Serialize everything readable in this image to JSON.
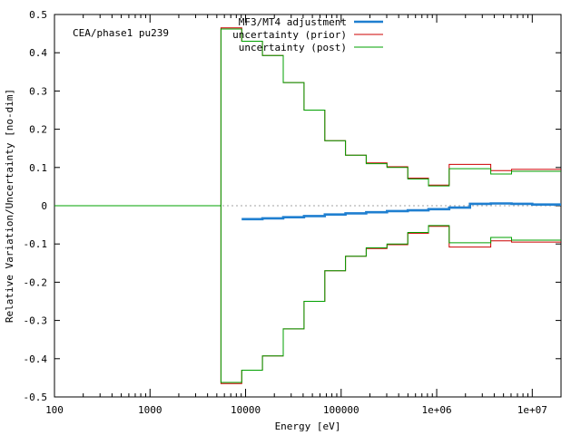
{
  "chart_data": {
    "type": "line",
    "annotation": "CEA/phase1 pu239",
    "xlabel": "Energy [eV]",
    "ylabel": "Relative Variation/Uncertainty [no-dim]",
    "xscale": "log",
    "xlim": [
      100,
      20000000
    ],
    "ylim": [
      -0.5,
      0.5
    ],
    "xticks": [
      {
        "value": 100,
        "label": "100"
      },
      {
        "value": 1000,
        "label": "1000"
      },
      {
        "value": 10000,
        "label": "10000"
      },
      {
        "value": 100000,
        "label": "100000"
      },
      {
        "value": 1000000,
        "label": "1e+06"
      },
      {
        "value": 10000000,
        "label": "1e+07"
      }
    ],
    "yticks": [
      {
        "value": 0.5,
        "label": "0.5"
      },
      {
        "value": 0.4,
        "label": "0.4"
      },
      {
        "value": 0.3,
        "label": "0.3"
      },
      {
        "value": 0.2,
        "label": "0.2"
      },
      {
        "value": 0.1,
        "label": "0.1"
      },
      {
        "value": 0,
        "label": "0"
      },
      {
        "value": -0.1,
        "label": "-0.1"
      },
      {
        "value": -0.2,
        "label": "-0.2"
      },
      {
        "value": -0.3,
        "label": "-0.3"
      },
      {
        "value": -0.4,
        "label": "-0.4"
      },
      {
        "value": -0.5,
        "label": "-0.5"
      }
    ],
    "legend_position": "top-right",
    "series": [
      {
        "name": "MF3/MT4 adjustment",
        "color": "#1f7fd0",
        "style": "thick",
        "x": [
          9100,
          15000,
          24800,
          40900,
          67400,
          111000,
          183000,
          302000,
          498000,
          821000,
          1350000,
          2230000,
          3680000,
          6070000,
          10000000,
          20000000
        ],
        "y": [
          -0.035,
          -0.033,
          -0.03,
          -0.027,
          -0.023,
          -0.02,
          -0.017,
          -0.014,
          -0.012,
          -0.009,
          -0.005,
          0.005,
          0.006,
          0.005,
          0.003,
          0.001
        ]
      },
      {
        "name": "uncertainty (prior)",
        "color": "#cc0000",
        "style": "thin",
        "x": [
          100,
          5530,
          9120,
          15000,
          24800,
          40900,
          67400,
          111000,
          183000,
          302000,
          498000,
          821000,
          1350000,
          3680000,
          6070000,
          20000000
        ],
        "y": [
          0,
          0.465,
          0.43,
          0.393,
          0.322,
          0.25,
          0.17,
          0.132,
          0.112,
          0.102,
          0.072,
          0.054,
          0.108,
          0.092,
          0.095,
          0.096
        ]
      },
      {
        "name": "uncertainty (post)",
        "color": "#00a000",
        "style": "thin",
        "x": [
          100,
          5530,
          9120,
          15000,
          24800,
          40900,
          67400,
          111000,
          183000,
          302000,
          498000,
          821000,
          1350000,
          3680000,
          6070000,
          20000000
        ],
        "y": [
          0,
          0.462,
          0.43,
          0.393,
          0.322,
          0.25,
          0.17,
          0.132,
          0.11,
          0.1,
          0.07,
          0.052,
          0.097,
          0.083,
          0.09,
          0.092
        ]
      }
    ]
  }
}
